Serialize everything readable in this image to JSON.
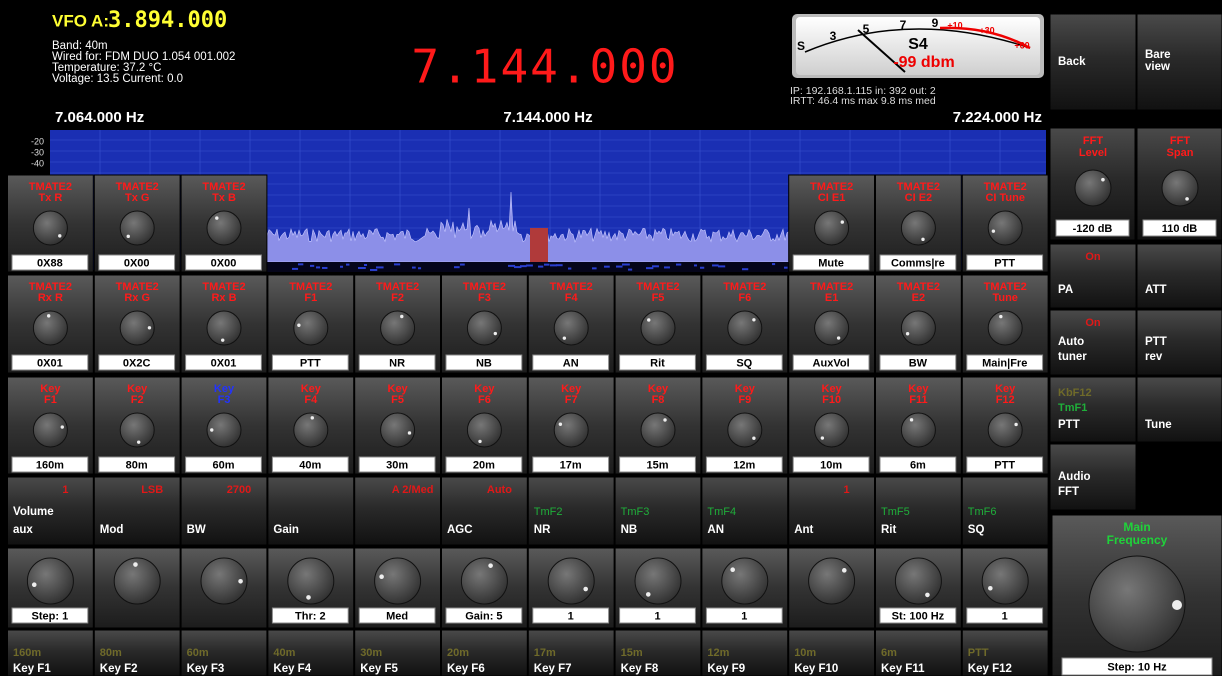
{
  "header": {
    "vfo_label": "VFO A:",
    "vfo_freq": "3.894.000",
    "info": [
      "Band: 40m",
      "Wired for: FDM DUO 1.054 001.002",
      "Temperature: 37.2 °C",
      "Voltage: 13.5  Current: 0.0"
    ],
    "main_freq": "7.144.000",
    "smeter": {
      "scale": [
        "S",
        "3",
        "5",
        "7",
        "9",
        "+10",
        "+30",
        "+60"
      ],
      "s_value": "S4",
      "dbm": "-99 dbm"
    },
    "network": [
      "IP: 192.168.1.115  in: 392 out:  2",
      "IRTT:  46.4 ms max  9.8 ms med"
    ],
    "freq_left": "7.064.000 Hz",
    "freq_center": "7.144.000 Hz",
    "freq_right": "7.224.000 Hz"
  },
  "spectrum": {
    "db_labels": [
      "-20",
      "-30",
      "-40"
    ]
  },
  "top_left_knobs": [
    {
      "title": "TMATE2",
      "sub": "Tx R",
      "value": "0X88"
    },
    {
      "title": "TMATE2",
      "sub": "Tx G",
      "value": "0X00"
    },
    {
      "title": "TMATE2",
      "sub": "Tx B",
      "value": "0X00"
    }
  ],
  "top_right_knobs": [
    {
      "title": "TMATE2",
      "sub": "CI E1",
      "value": "Mute"
    },
    {
      "title": "TMATE2",
      "sub": "CI E2",
      "value": "Comms|re"
    },
    {
      "title": "TMATE2",
      "sub": "CI Tune",
      "value": "PTT"
    }
  ],
  "knobs_row2": [
    {
      "title": "TMATE2",
      "sub": "Rx R",
      "value": "0X01"
    },
    {
      "title": "TMATE2",
      "sub": "Rx G",
      "value": "0X2C"
    },
    {
      "title": "TMATE2",
      "sub": "Rx B",
      "value": "0X01"
    },
    {
      "title": "TMATE2",
      "sub": "F1",
      "value": "PTT"
    },
    {
      "title": "TMATE2",
      "sub": "F2",
      "value": "NR"
    },
    {
      "title": "TMATE2",
      "sub": "F3",
      "value": "NB"
    },
    {
      "title": "TMATE2",
      "sub": "F4",
      "value": "AN"
    },
    {
      "title": "TMATE2",
      "sub": "F5",
      "value": "Rit"
    },
    {
      "title": "TMATE2",
      "sub": "F6",
      "value": "SQ"
    },
    {
      "title": "TMATE2",
      "sub": "E1",
      "value": "AuxVol"
    },
    {
      "title": "TMATE2",
      "sub": "E2",
      "value": "BW"
    },
    {
      "title": "TMATE2",
      "sub": "Tune",
      "value": "Main|Fre"
    }
  ],
  "key_knobs": [
    {
      "title": "Key",
      "sub": "F1",
      "value": "160m"
    },
    {
      "title": "Key",
      "sub": "F2",
      "value": "80m"
    },
    {
      "title": "Key",
      "sub": "F3",
      "value": "60m",
      "color": "#2233ff"
    },
    {
      "title": "Key",
      "sub": "F4",
      "value": "40m"
    },
    {
      "title": "Key",
      "sub": "F5",
      "value": "30m"
    },
    {
      "title": "Key",
      "sub": "F6",
      "value": "20m"
    },
    {
      "title": "Key",
      "sub": "F7",
      "value": "17m"
    },
    {
      "title": "Key",
      "sub": "F8",
      "value": "15m"
    },
    {
      "title": "Key",
      "sub": "F9",
      "value": "12m"
    },
    {
      "title": "Key",
      "sub": "F10",
      "value": "10m"
    },
    {
      "title": "Key",
      "sub": "F11",
      "value": "6m"
    },
    {
      "title": "Key",
      "sub": "F12",
      "value": "PTT"
    }
  ],
  "buttons": [
    {
      "top": "1",
      "lines": [
        "Volume",
        "aux"
      ]
    },
    {
      "top": "LSB",
      "lines": [
        "Mod"
      ]
    },
    {
      "top": "2700",
      "lines": [
        "BW"
      ]
    },
    {
      "lines": [
        "Gain"
      ]
    },
    {
      "top": "A 2/Med"
    },
    {
      "top": "Auto",
      "lines": [
        "AGC"
      ]
    },
    {
      "tag": "TmF2",
      "lines": [
        "NR"
      ]
    },
    {
      "tag": "TmF3",
      "lines": [
        "NB"
      ]
    },
    {
      "tag": "TmF4",
      "lines": [
        "AN"
      ]
    },
    {
      "top": "1",
      "lines": [
        "Ant"
      ]
    },
    {
      "tag": "TmF5",
      "lines": [
        "Rit"
      ]
    },
    {
      "tag": "TmF6",
      "lines": [
        "SQ"
      ]
    }
  ],
  "bottom_knob_values": [
    "Step: 1",
    null,
    null,
    "Thr: 2",
    "Med",
    "Gain: 5",
    "1",
    "1",
    "1",
    null,
    "St: 100 Hz",
    "1"
  ],
  "key_labels": [
    {
      "band": "160m",
      "key": "Key F1"
    },
    {
      "band": "80m",
      "key": "Key F2"
    },
    {
      "band": "60m",
      "key": "Key F3"
    },
    {
      "band": "40m",
      "key": "Key F4"
    },
    {
      "band": "30m",
      "key": "Key F5"
    },
    {
      "band": "20m",
      "key": "Key F6"
    },
    {
      "band": "17m",
      "key": "Key F7"
    },
    {
      "band": "15m",
      "key": "Key F8"
    },
    {
      "band": "12m",
      "key": "Key F9"
    },
    {
      "band": "10m",
      "key": "Key F10"
    },
    {
      "band": "6m",
      "key": "Key F11"
    },
    {
      "band": "PTT",
      "key": "Key F12"
    }
  ],
  "side": {
    "back": "Back",
    "bare_view": [
      "Bare",
      "view"
    ],
    "fft_level": {
      "title": [
        "FFT",
        "Level"
      ],
      "value": "-120 dB"
    },
    "fft_span": {
      "title": [
        "FFT",
        "Span"
      ],
      "value": "110 dB"
    },
    "pa": {
      "state": "On",
      "label": "PA"
    },
    "att": "ATT",
    "auto_tuner": {
      "state": "On",
      "lines": [
        "Auto",
        "tuner"
      ]
    },
    "ptt_rev": [
      "PTT",
      "rev"
    ],
    "ptt": {
      "tags": [
        "KbF12",
        "TmF1"
      ],
      "label": "PTT"
    },
    "tune": "Tune",
    "audio_fft": [
      "Audio",
      "FFT"
    ],
    "main_frequency": {
      "title": [
        "Main",
        "Frequency"
      ],
      "value": "Step: 10 Hz"
    }
  }
}
